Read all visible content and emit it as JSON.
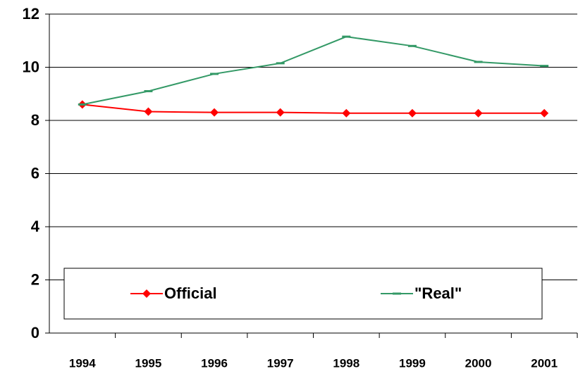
{
  "chart_data": {
    "type": "line",
    "categories": [
      "1994",
      "1995",
      "1996",
      "1997",
      "1998",
      "1999",
      "2000",
      "2001"
    ],
    "series": [
      {
        "name": "Official",
        "color": "#ff0000",
        "marker": "diamond",
        "values": [
          8.6,
          8.33,
          8.3,
          8.3,
          8.27,
          8.27,
          8.27,
          8.27
        ]
      },
      {
        "name": "\"Real\"",
        "color": "#339966",
        "marker": "dash",
        "values": [
          8.6,
          9.1,
          9.75,
          10.15,
          11.15,
          10.8,
          10.2,
          10.05
        ]
      }
    ],
    "ylim": [
      0,
      12
    ],
    "yticks": [
      0,
      2,
      4,
      6,
      8,
      10,
      12
    ],
    "grid": true
  }
}
